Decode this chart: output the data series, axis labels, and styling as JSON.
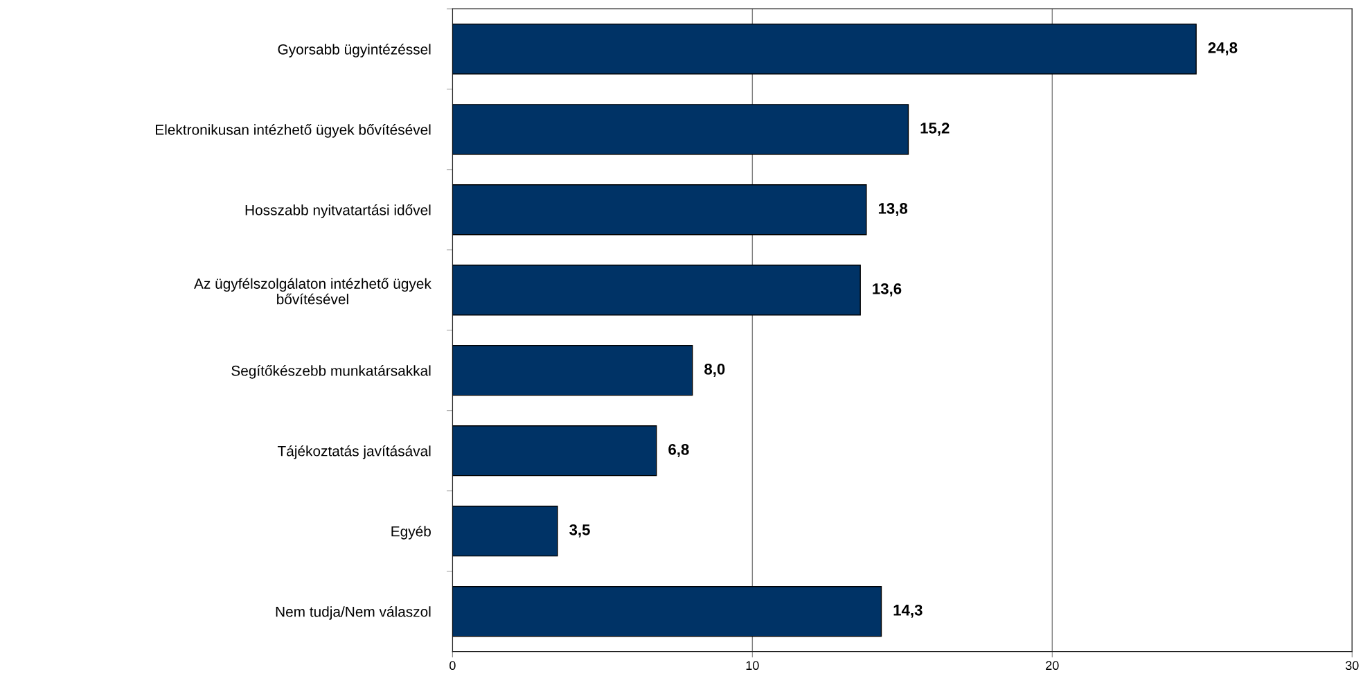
{
  "chart_data": {
    "type": "bar",
    "orientation": "horizontal",
    "categories": [
      "Gyorsabb ügyintézéssel",
      "Elektronikusan intézhető ügyek bővítésével",
      "Hosszabb nyitvatartási idővel",
      "Az ügyfélszolgálaton intézhető ügyek\nbővítésével",
      "Segítőkészebb munkatársakkal",
      "Tájékoztatás javításával",
      "Egyéb",
      "Nem tudja/Nem válaszol"
    ],
    "values": [
      24.8,
      15.2,
      13.8,
      13.6,
      8.0,
      6.8,
      3.5,
      14.3
    ],
    "value_labels": [
      "24,8",
      "15,2",
      "13,8",
      "13,6",
      "8,0",
      "6,8",
      "3,5",
      "14,3"
    ],
    "color": "#003366",
    "xlim": [
      0,
      30
    ],
    "xticks": [
      0,
      10,
      20,
      30
    ],
    "grid": "x",
    "legend": false
  }
}
